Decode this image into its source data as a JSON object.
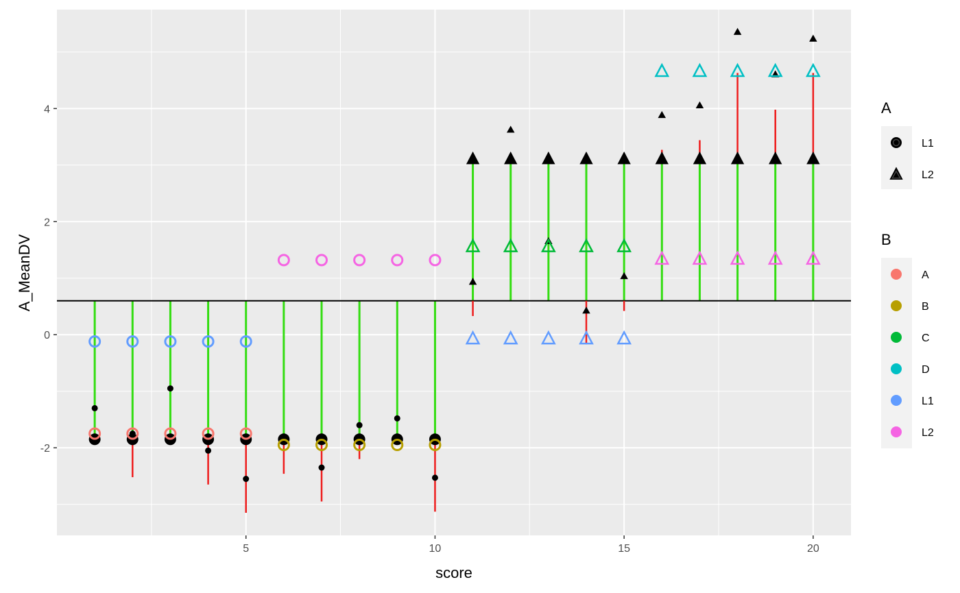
{
  "chart_data": {
    "type": "scatter",
    "xlabel": "score",
    "ylabel": "A_MeanDV",
    "xlim": [
      0.0,
      21.0
    ],
    "ylim": [
      -3.55,
      5.75
    ],
    "x_ticks": [
      5,
      10,
      15,
      20
    ],
    "x_tick_labels": [
      "5",
      "10",
      "15",
      "20"
    ],
    "y_ticks": [
      -2,
      0,
      2,
      4
    ],
    "y_tick_labels": [
      "-2",
      "0",
      "2",
      "4"
    ],
    "reference_line_y": 0.6,
    "grid": true,
    "colors": {
      "panel": "#ebebeb",
      "grid": "#ffffff",
      "green_segment": "#33dd11",
      "red_segment": "#ee1c1c",
      "A": "#f8766d",
      "B": "#b79f00",
      "C": "#00ba38",
      "D": "#00bfc4",
      "L1": "#619cff",
      "L2": "#f564e3"
    },
    "legend": {
      "position": "right",
      "A": {
        "title": "A",
        "entries": [
          {
            "label": "L1",
            "shape": "circle"
          },
          {
            "label": "L2",
            "shape": "triangle"
          }
        ]
      },
      "B": {
        "title": "B",
        "entries": [
          {
            "label": "A",
            "color": "#f8766d"
          },
          {
            "label": "B",
            "color": "#b79f00"
          },
          {
            "label": "C",
            "color": "#00ba38"
          },
          {
            "label": "D",
            "color": "#00bfc4"
          },
          {
            "label": "L1",
            "color": "#619cff"
          },
          {
            "label": "L2",
            "color": "#f564e3"
          }
        ]
      }
    },
    "green_segments": [
      {
        "x": 1,
        "y0": 0.6,
        "y1": -1.75
      },
      {
        "x": 2,
        "y0": 0.6,
        "y1": -1.75
      },
      {
        "x": 3,
        "y0": 0.6,
        "y1": -1.75
      },
      {
        "x": 4,
        "y0": 0.6,
        "y1": -1.75
      },
      {
        "x": 5,
        "y0": 0.6,
        "y1": -1.75
      },
      {
        "x": 6,
        "y0": 0.6,
        "y1": -1.95
      },
      {
        "x": 7,
        "y0": 0.6,
        "y1": -1.95
      },
      {
        "x": 8,
        "y0": 0.6,
        "y1": -1.95
      },
      {
        "x": 9,
        "y0": 0.6,
        "y1": -1.95
      },
      {
        "x": 10,
        "y0": 0.6,
        "y1": -1.95
      },
      {
        "x": 11,
        "y0": 0.6,
        "y1": 3.1
      },
      {
        "x": 12,
        "y0": 0.6,
        "y1": 3.1
      },
      {
        "x": 13,
        "y0": 0.6,
        "y1": 3.1
      },
      {
        "x": 14,
        "y0": 0.6,
        "y1": 3.1
      },
      {
        "x": 15,
        "y0": 0.6,
        "y1": 3.1
      },
      {
        "x": 16,
        "y0": 0.6,
        "y1": 3.1
      },
      {
        "x": 17,
        "y0": 0.6,
        "y1": 3.1
      },
      {
        "x": 18,
        "y0": 0.6,
        "y1": 3.1
      },
      {
        "x": 19,
        "y0": 0.6,
        "y1": 3.1
      },
      {
        "x": 20,
        "y0": 0.6,
        "y1": 3.1
      }
    ],
    "red_segments": [
      {
        "x": 2,
        "y0": -1.85,
        "y1": -2.52
      },
      {
        "x": 4,
        "y0": -1.85,
        "y1": -2.65
      },
      {
        "x": 5,
        "y0": -1.85,
        "y1": -3.15
      },
      {
        "x": 6,
        "y0": -1.85,
        "y1": -2.46
      },
      {
        "x": 7,
        "y0": -1.85,
        "y1": -2.95
      },
      {
        "x": 8,
        "y0": -1.85,
        "y1": -2.2
      },
      {
        "x": 10,
        "y0": -1.85,
        "y1": -3.13
      },
      {
        "x": 11,
        "y0": 0.6,
        "y1": 0.33
      },
      {
        "x": 14,
        "y0": 0.6,
        "y1": -0.17
      },
      {
        "x": 15,
        "y0": 0.6,
        "y1": 0.42
      },
      {
        "x": 16,
        "y0": 3.1,
        "y1": 3.27
      },
      {
        "x": 17,
        "y0": 3.1,
        "y1": 3.44
      },
      {
        "x": 18,
        "y0": 3.1,
        "y1": 4.63
      },
      {
        "x": 19,
        "y0": 3.1,
        "y1": 3.98
      },
      {
        "x": 20,
        "y0": 3.1,
        "y1": 4.63
      }
    ],
    "large_points": [
      {
        "x": 1,
        "y": -1.85,
        "shape": "circle"
      },
      {
        "x": 2,
        "y": -1.85,
        "shape": "circle"
      },
      {
        "x": 3,
        "y": -1.85,
        "shape": "circle"
      },
      {
        "x": 4,
        "y": -1.85,
        "shape": "circle"
      },
      {
        "x": 5,
        "y": -1.85,
        "shape": "circle"
      },
      {
        "x": 6,
        "y": -1.85,
        "shape": "circle"
      },
      {
        "x": 7,
        "y": -1.85,
        "shape": "circle"
      },
      {
        "x": 8,
        "y": -1.85,
        "shape": "circle"
      },
      {
        "x": 9,
        "y": -1.85,
        "shape": "circle"
      },
      {
        "x": 10,
        "y": -1.85,
        "shape": "circle"
      },
      {
        "x": 11,
        "y": 3.1,
        "shape": "triangle"
      },
      {
        "x": 12,
        "y": 3.1,
        "shape": "triangle"
      },
      {
        "x": 13,
        "y": 3.1,
        "shape": "triangle"
      },
      {
        "x": 14,
        "y": 3.1,
        "shape": "triangle"
      },
      {
        "x": 15,
        "y": 3.1,
        "shape": "triangle"
      },
      {
        "x": 16,
        "y": 3.1,
        "shape": "triangle"
      },
      {
        "x": 17,
        "y": 3.1,
        "shape": "triangle"
      },
      {
        "x": 18,
        "y": 3.1,
        "shape": "triangle"
      },
      {
        "x": 19,
        "y": 3.1,
        "shape": "triangle"
      },
      {
        "x": 20,
        "y": 3.1,
        "shape": "triangle"
      }
    ],
    "small_points": [
      {
        "x": 1,
        "y": -1.3,
        "shape": "circle"
      },
      {
        "x": 2,
        "y": -1.75,
        "shape": "circle"
      },
      {
        "x": 3,
        "y": -0.95,
        "shape": "circle"
      },
      {
        "x": 4,
        "y": -2.05,
        "shape": "circle"
      },
      {
        "x": 5,
        "y": -2.55,
        "shape": "circle"
      },
      {
        "x": 6,
        "y": -1.85,
        "shape": "circle"
      },
      {
        "x": 7,
        "y": -2.35,
        "shape": "circle"
      },
      {
        "x": 8,
        "y": -1.6,
        "shape": "circle"
      },
      {
        "x": 9,
        "y": -1.48,
        "shape": "circle"
      },
      {
        "x": 10,
        "y": -2.53,
        "shape": "circle"
      },
      {
        "x": 11,
        "y": 0.93,
        "shape": "triangle"
      },
      {
        "x": 12,
        "y": 3.62,
        "shape": "triangle"
      },
      {
        "x": 13,
        "y": 1.65,
        "shape": "triangle"
      },
      {
        "x": 14,
        "y": 0.42,
        "shape": "triangle"
      },
      {
        "x": 15,
        "y": 1.03,
        "shape": "triangle"
      },
      {
        "x": 16,
        "y": 3.88,
        "shape": "triangle"
      },
      {
        "x": 17,
        "y": 4.05,
        "shape": "triangle"
      },
      {
        "x": 18,
        "y": 5.35,
        "shape": "triangle"
      },
      {
        "x": 19,
        "y": 4.6,
        "shape": "triangle"
      },
      {
        "x": 20,
        "y": 5.23,
        "shape": "triangle"
      }
    ],
    "colored_points": [
      {
        "x": 1,
        "y": -0.12,
        "group": "L1",
        "shape": "circle"
      },
      {
        "x": 2,
        "y": -0.12,
        "group": "L1",
        "shape": "circle"
      },
      {
        "x": 3,
        "y": -0.12,
        "group": "L1",
        "shape": "circle"
      },
      {
        "x": 4,
        "y": -0.12,
        "group": "L1",
        "shape": "circle"
      },
      {
        "x": 5,
        "y": -0.12,
        "group": "L1",
        "shape": "circle"
      },
      {
        "x": 1,
        "y": -1.75,
        "group": "A",
        "shape": "circle"
      },
      {
        "x": 2,
        "y": -1.75,
        "group": "A",
        "shape": "circle"
      },
      {
        "x": 3,
        "y": -1.75,
        "group": "A",
        "shape": "circle"
      },
      {
        "x": 4,
        "y": -1.75,
        "group": "A",
        "shape": "circle"
      },
      {
        "x": 5,
        "y": -1.75,
        "group": "A",
        "shape": "circle"
      },
      {
        "x": 6,
        "y": 1.32,
        "group": "L2",
        "shape": "circle"
      },
      {
        "x": 7,
        "y": 1.32,
        "group": "L2",
        "shape": "circle"
      },
      {
        "x": 8,
        "y": 1.32,
        "group": "L2",
        "shape": "circle"
      },
      {
        "x": 9,
        "y": 1.32,
        "group": "L2",
        "shape": "circle"
      },
      {
        "x": 10,
        "y": 1.32,
        "group": "L2",
        "shape": "circle"
      },
      {
        "x": 6,
        "y": -1.95,
        "group": "B",
        "shape": "circle"
      },
      {
        "x": 7,
        "y": -1.95,
        "group": "B",
        "shape": "circle"
      },
      {
        "x": 8,
        "y": -1.95,
        "group": "B",
        "shape": "circle"
      },
      {
        "x": 9,
        "y": -1.95,
        "group": "B",
        "shape": "circle"
      },
      {
        "x": 10,
        "y": -1.95,
        "group": "B",
        "shape": "circle"
      },
      {
        "x": 11,
        "y": 1.55,
        "group": "C",
        "shape": "triangle"
      },
      {
        "x": 12,
        "y": 1.55,
        "group": "C",
        "shape": "triangle"
      },
      {
        "x": 13,
        "y": 1.55,
        "group": "C",
        "shape": "triangle"
      },
      {
        "x": 14,
        "y": 1.55,
        "group": "C",
        "shape": "triangle"
      },
      {
        "x": 15,
        "y": 1.55,
        "group": "C",
        "shape": "triangle"
      },
      {
        "x": 11,
        "y": -0.08,
        "group": "L1",
        "shape": "triangle"
      },
      {
        "x": 12,
        "y": -0.08,
        "group": "L1",
        "shape": "triangle"
      },
      {
        "x": 13,
        "y": -0.08,
        "group": "L1",
        "shape": "triangle"
      },
      {
        "x": 14,
        "y": -0.08,
        "group": "L1",
        "shape": "triangle"
      },
      {
        "x": 15,
        "y": -0.08,
        "group": "L1",
        "shape": "triangle"
      },
      {
        "x": 16,
        "y": 4.65,
        "group": "D",
        "shape": "triangle"
      },
      {
        "x": 17,
        "y": 4.65,
        "group": "D",
        "shape": "triangle"
      },
      {
        "x": 18,
        "y": 4.65,
        "group": "D",
        "shape": "triangle"
      },
      {
        "x": 19,
        "y": 4.65,
        "group": "D",
        "shape": "triangle"
      },
      {
        "x": 20,
        "y": 4.65,
        "group": "D",
        "shape": "triangle"
      },
      {
        "x": 16,
        "y": 1.33,
        "group": "L2",
        "shape": "triangle"
      },
      {
        "x": 17,
        "y": 1.33,
        "group": "L2",
        "shape": "triangle"
      },
      {
        "x": 18,
        "y": 1.33,
        "group": "L2",
        "shape": "triangle"
      },
      {
        "x": 19,
        "y": 1.33,
        "group": "L2",
        "shape": "triangle"
      },
      {
        "x": 20,
        "y": 1.33,
        "group": "L2",
        "shape": "triangle"
      }
    ]
  }
}
